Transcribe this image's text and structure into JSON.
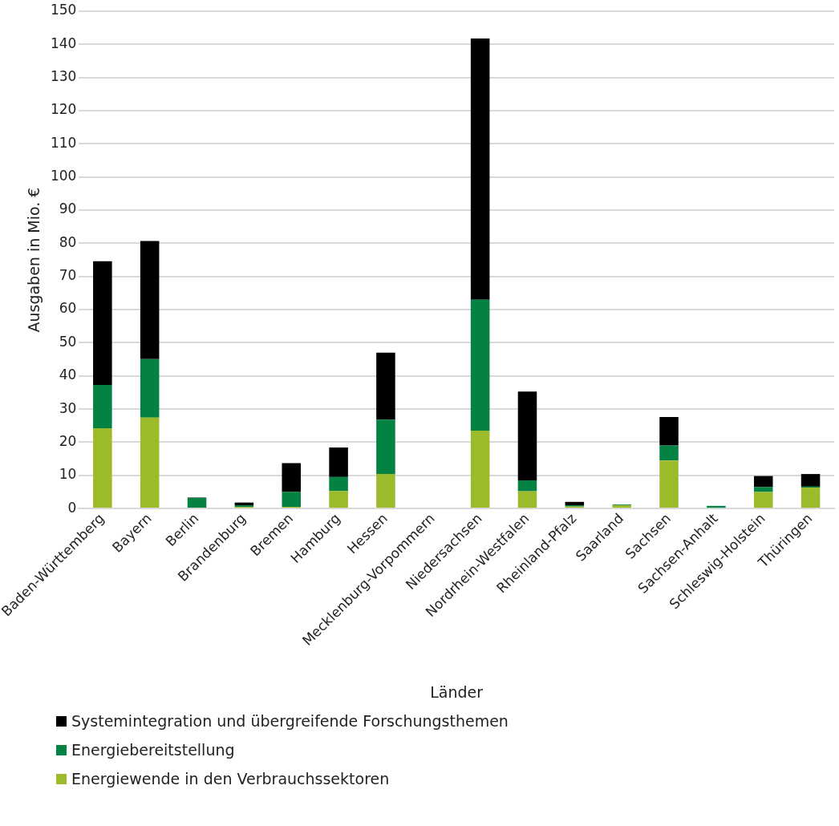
{
  "chart_data": {
    "type": "bar",
    "stacked": true,
    "xlabel": "Länder",
    "ylabel": "Ausgaben in Mio. €",
    "categories": [
      "Baden-Württemberg",
      "Bayern",
      "Berlin",
      "Brandenburg",
      "Bremen",
      "Hamburg",
      "Hessen",
      "Mecklenburg-Vorpommern",
      "Niedersachsen",
      "Nordrhein-Westfalen",
      "Rheinland-Pfalz",
      "Saarland",
      "Sachsen",
      "Sachsen-Anhalt",
      "Schleswig-Holstein",
      "Thüringen"
    ],
    "series": [
      {
        "name": "Energiewende in den Verbrauchssektoren",
        "color": "#9bbb2a",
        "values": [
          24.2,
          27.4,
          0,
          0.5,
          0.5,
          5.3,
          10.4,
          0,
          23.5,
          5.2,
          0.6,
          1.0,
          14.5,
          0,
          5.0,
          6.3
        ]
      },
      {
        "name": "Energiebereitstellung",
        "color": "#048243",
        "values": [
          13.1,
          17.7,
          3.2,
          0.5,
          4.5,
          4.2,
          16.4,
          0,
          39.5,
          3.3,
          0.4,
          0.2,
          4.5,
          0.8,
          1.5,
          0.3
        ]
      },
      {
        "name": "Systemintegration und übergreifende Forschungsthemen",
        "color": "#000000",
        "values": [
          37.3,
          35.6,
          0.1,
          0.8,
          8.7,
          8.9,
          20.2,
          0,
          78.8,
          26.8,
          1.0,
          0,
          8.6,
          0,
          3.3,
          3.8
        ]
      }
    ],
    "ylim": [
      0,
      150
    ],
    "yticks": [
      0,
      10,
      20,
      30,
      40,
      50,
      60,
      70,
      80,
      90,
      100,
      110,
      120,
      130,
      140,
      150
    ],
    "grid": "y",
    "legend": "bottom"
  }
}
